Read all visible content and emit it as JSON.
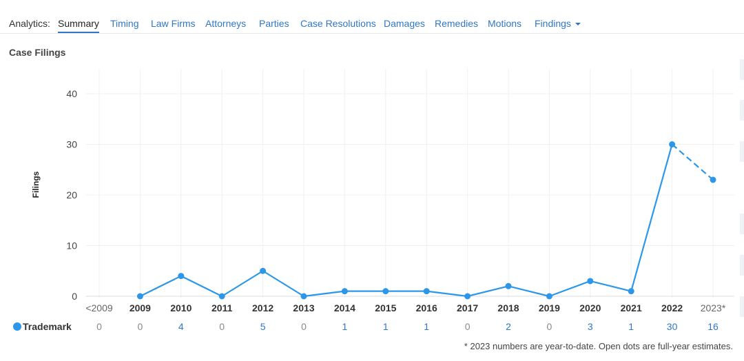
{
  "nav": {
    "label": "Analytics:",
    "tabs": [
      {
        "label": "Summary",
        "active": true
      },
      {
        "label": "Timing"
      },
      {
        "label": "Law Firms"
      },
      {
        "label": "Attorneys"
      },
      {
        "label": "Parties"
      },
      {
        "label": "Case Resolutions"
      },
      {
        "label": "Damages"
      },
      {
        "label": "Remedies"
      },
      {
        "label": "Motions"
      },
      {
        "label": "Findings",
        "dropdown": true
      }
    ]
  },
  "section_title": "Case Filings",
  "chart_data": {
    "type": "line",
    "ylabel": "Filings",
    "ylim": [
      0,
      45
    ],
    "yticks": [
      0,
      10,
      20,
      30,
      40
    ],
    "categories": [
      "<2009",
      "2009",
      "2010",
      "2011",
      "2012",
      "2013",
      "2014",
      "2015",
      "2016",
      "2017",
      "2018",
      "2019",
      "2020",
      "2021",
      "2022",
      "2023*"
    ],
    "series": [
      {
        "name": "Trademark",
        "color": "#2c97e8",
        "values": [
          null,
          0,
          4,
          0,
          5,
          0,
          1,
          1,
          1,
          0,
          2,
          0,
          3,
          1,
          30,
          23
        ],
        "table_values": [
          "0",
          "0",
          "4",
          "0",
          "5",
          "0",
          "1",
          "1",
          "1",
          "0",
          "2",
          "0",
          "3",
          "1",
          "30",
          "16"
        ]
      }
    ],
    "dashed_last_segment": true,
    "grid": true
  },
  "footnote": "* 2023 numbers are year-to-date. Open dots are full-year estimates."
}
